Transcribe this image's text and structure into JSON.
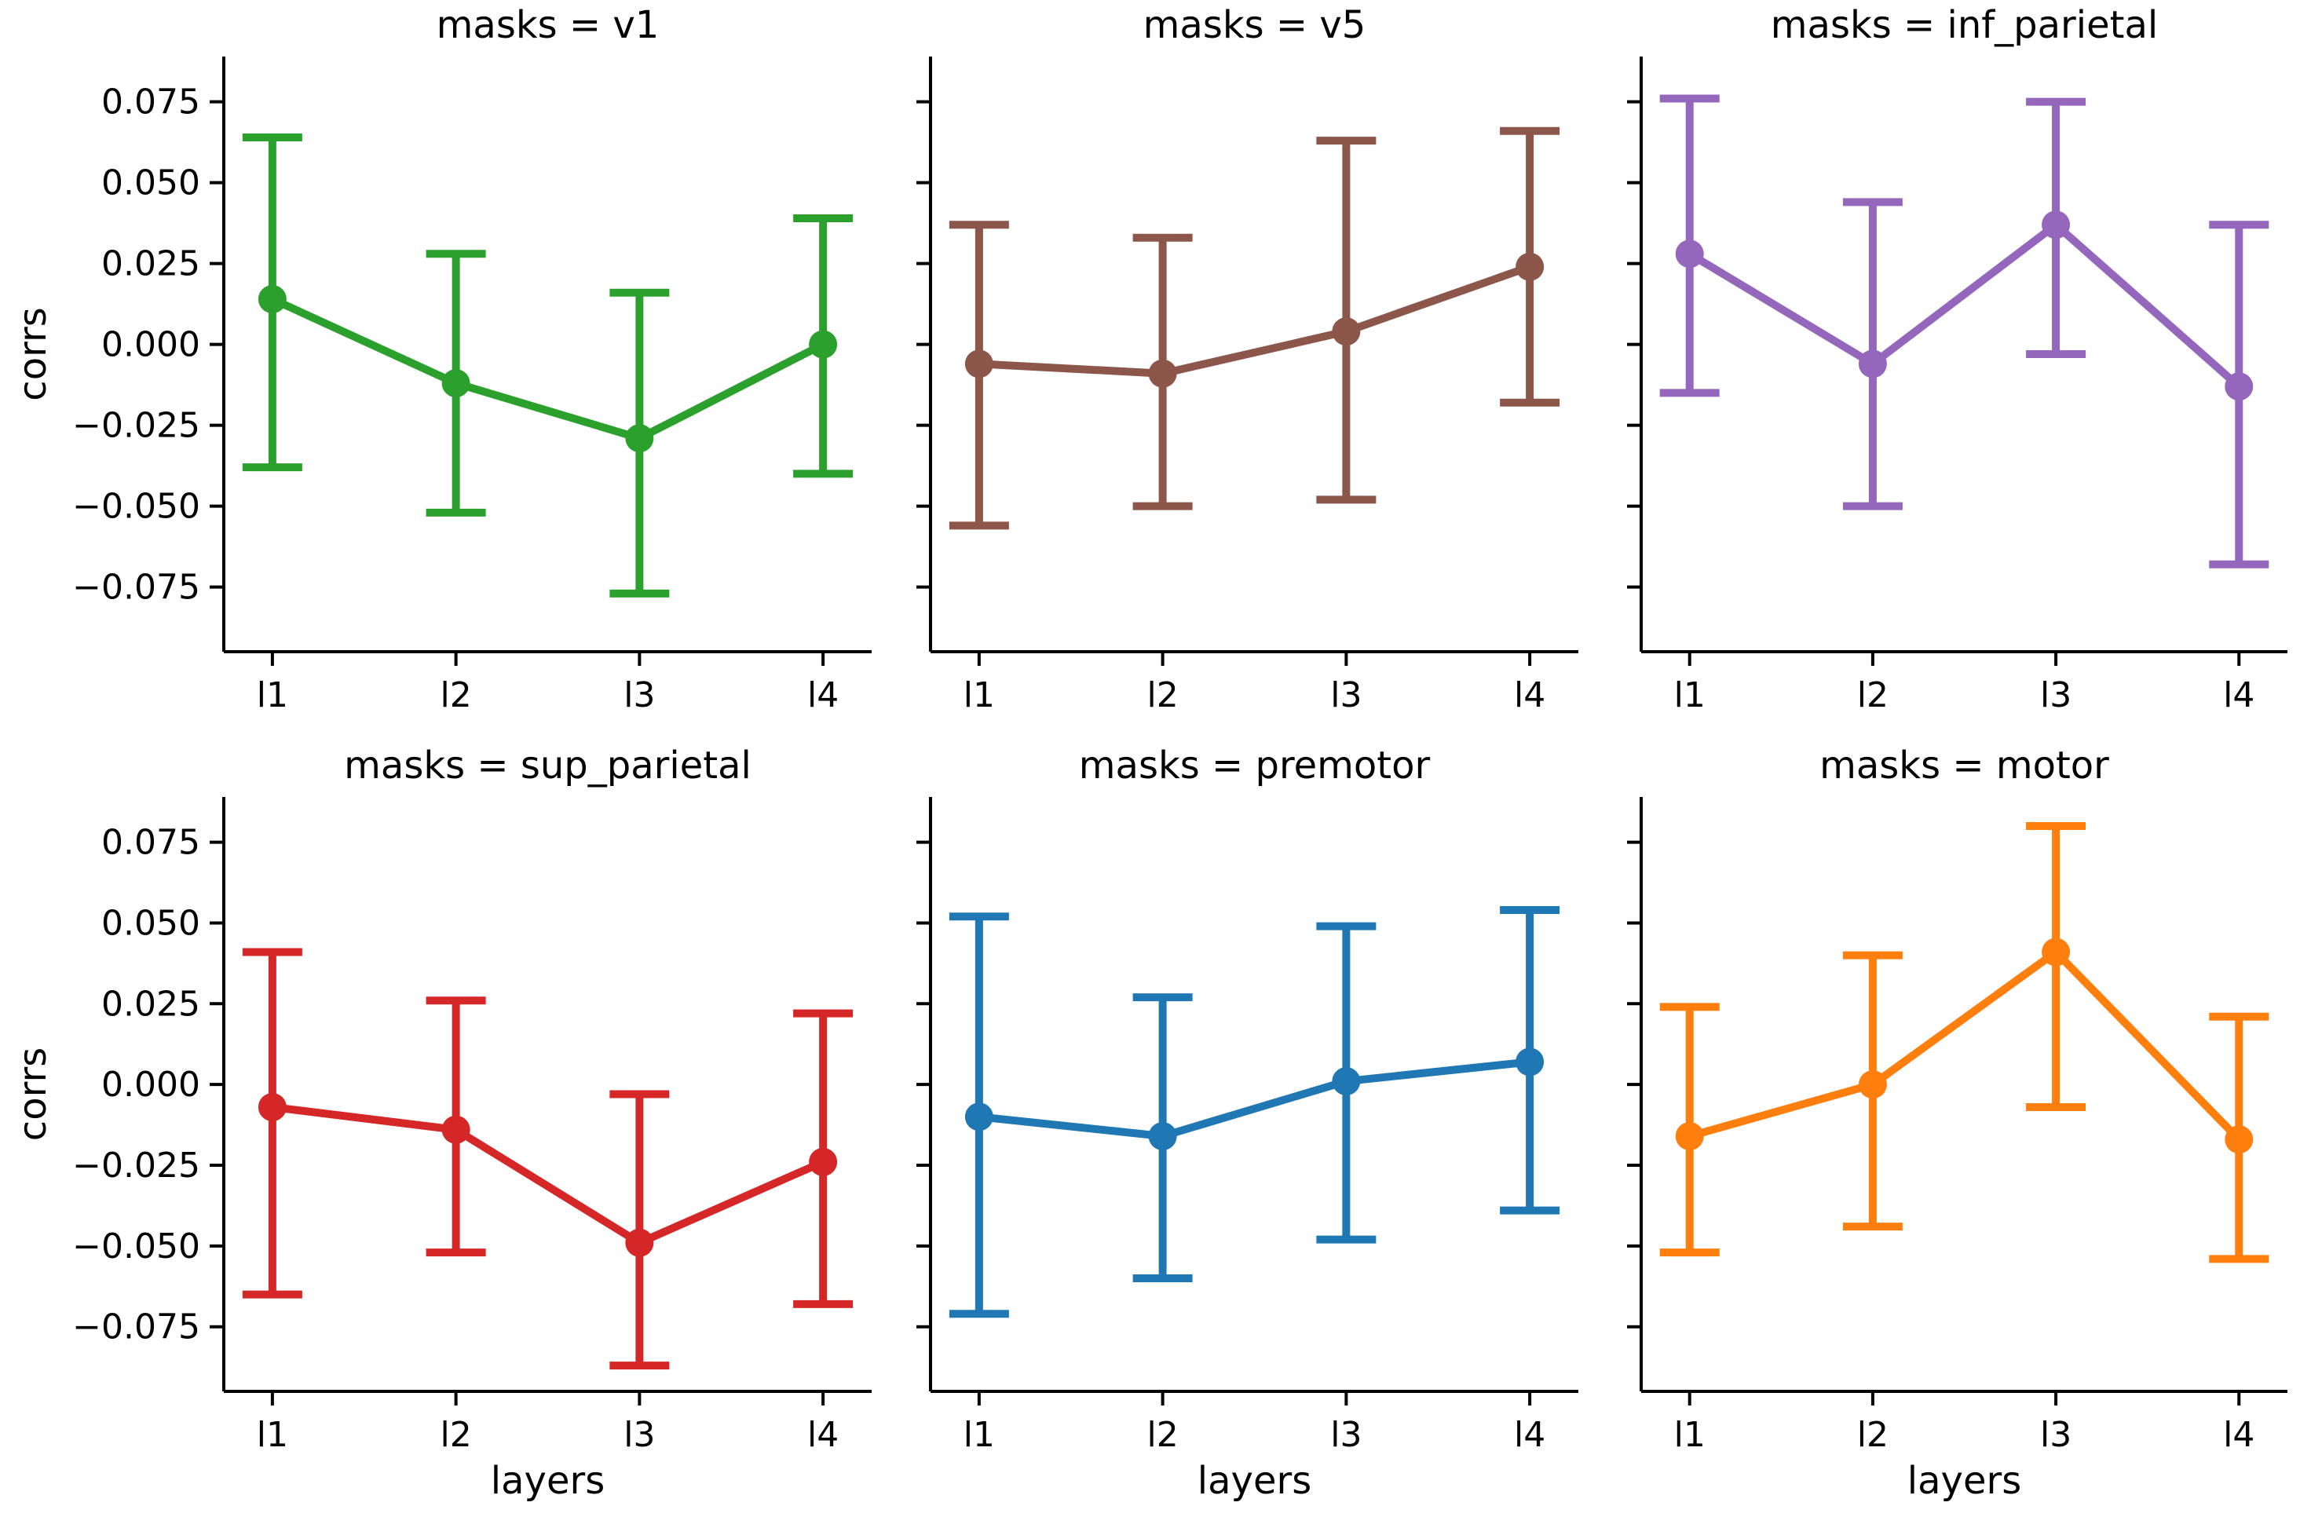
{
  "chart_data": {
    "type": "line",
    "layout": "facet-grid 2x3, shared axes",
    "categories": [
      "l1",
      "l2",
      "l3",
      "l4"
    ],
    "xlabel": "layers",
    "ylabel": "corrs",
    "ylim": [
      -0.095,
      0.089
    ],
    "yticks": [
      -0.075,
      -0.05,
      -0.025,
      0.0,
      0.025,
      0.05,
      0.075
    ],
    "ytick_labels": [
      "−0.075",
      "−0.050",
      "−0.025",
      "0.000",
      "0.025",
      "0.050",
      "0.075"
    ],
    "grid": false,
    "error_bars": "capped",
    "panels": [
      {
        "title": "masks = v1",
        "color": "#2ca02c",
        "values": [
          0.014,
          -0.012,
          -0.029,
          0.0
        ],
        "ci_low": [
          -0.038,
          -0.052,
          -0.077,
          -0.04
        ],
        "ci_high": [
          0.064,
          0.028,
          0.016,
          0.039
        ]
      },
      {
        "title": "masks = v5",
        "color": "#8c564b",
        "values": [
          -0.006,
          -0.009,
          0.004,
          0.024
        ],
        "ci_low": [
          -0.056,
          -0.05,
          -0.048,
          -0.018
        ],
        "ci_high": [
          0.037,
          0.033,
          0.063,
          0.066
        ]
      },
      {
        "title": "masks = inf_parietal",
        "color": "#9467bd",
        "values": [
          0.028,
          -0.006,
          0.037,
          -0.013
        ],
        "ci_low": [
          -0.015,
          -0.05,
          -0.003,
          -0.068
        ],
        "ci_high": [
          0.076,
          0.044,
          0.075,
          0.037
        ]
      },
      {
        "title": "masks = sup_parietal",
        "color": "#d62728",
        "values": [
          -0.007,
          -0.014,
          -0.049,
          -0.024
        ],
        "ci_low": [
          -0.065,
          -0.052,
          -0.087,
          -0.068
        ],
        "ci_high": [
          0.041,
          0.026,
          -0.003,
          0.022
        ]
      },
      {
        "title": "masks = premotor",
        "color": "#1f77b4",
        "values": [
          -0.01,
          -0.016,
          0.001,
          0.007
        ],
        "ci_low": [
          -0.071,
          -0.06,
          -0.048,
          -0.039
        ],
        "ci_high": [
          0.052,
          0.027,
          0.049,
          0.054
        ]
      },
      {
        "title": "masks = motor",
        "color": "#ff7f0e",
        "values": [
          -0.016,
          0.0,
          0.041,
          -0.017
        ],
        "ci_low": [
          -0.052,
          -0.044,
          -0.007,
          -0.054
        ],
        "ci_high": [
          0.024,
          0.04,
          0.08,
          0.021
        ]
      }
    ]
  }
}
